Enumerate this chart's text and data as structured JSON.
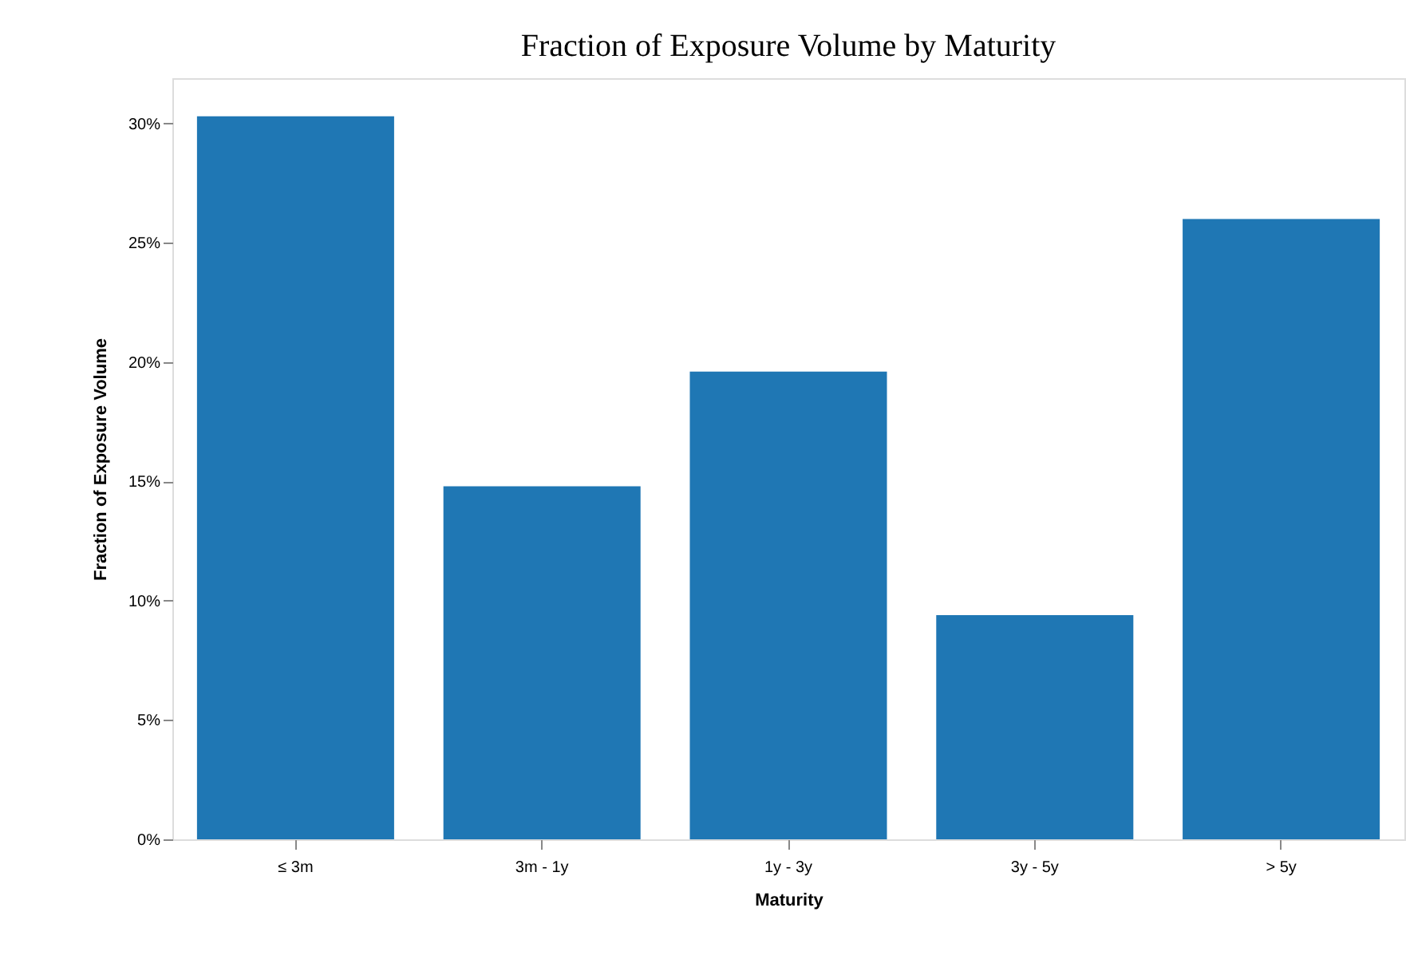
{
  "chart_data": {
    "type": "bar",
    "title": "Fraction of Exposure Volume by Maturity",
    "xlabel": "Maturity",
    "ylabel": "Fraction of Exposure Volume",
    "categories": [
      "≤ 3m",
      "3m - 1y",
      "1y - 3y",
      "3y - 5y",
      "> 5y"
    ],
    "values": [
      30.3,
      14.8,
      19.6,
      9.4,
      26.0
    ],
    "color": "#1f77b4",
    "ylim": [
      0,
      31.9
    ],
    "yticks": [
      {
        "value": 0,
        "label": "0%"
      },
      {
        "value": 5,
        "label": "5%"
      },
      {
        "value": 10,
        "label": "10%"
      },
      {
        "value": 15,
        "label": "15%"
      },
      {
        "value": 20,
        "label": "20%"
      },
      {
        "value": 25,
        "label": "25%"
      },
      {
        "value": 30,
        "label": "30%"
      }
    ],
    "grid": false
  }
}
